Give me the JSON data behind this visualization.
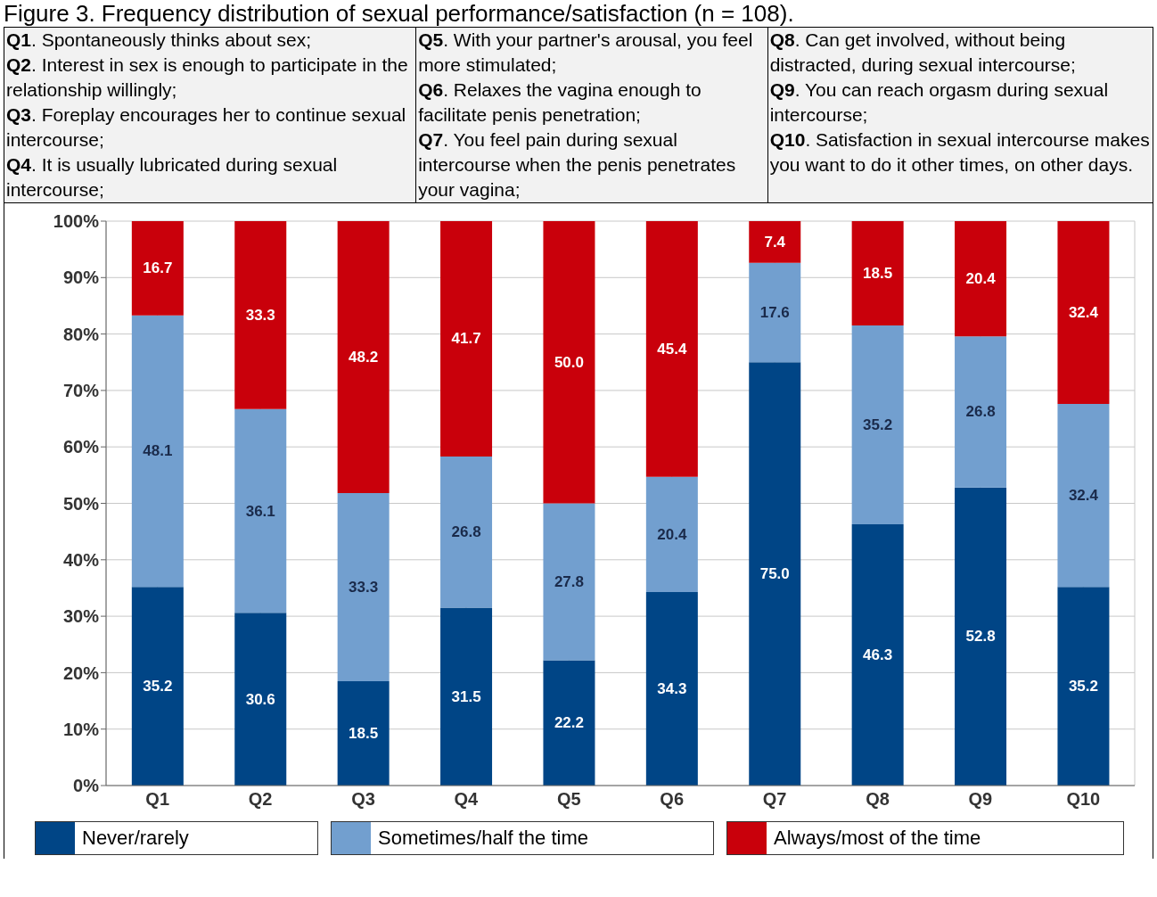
{
  "chart_data": {
    "type": "bar",
    "title": "Figure 3. Frequency distribution of sexual performance/satisfaction (n = 108).",
    "annotations": [
      "Q1. Spontaneously thinks about sex;",
      "Q2. Interest in sex is enough to participate in the relationship willingly;",
      "Q3. Foreplay encourages her to continue sexual intercourse;",
      "Q4. It is usually lubricated during sexual intercourse;",
      "Q5. With your partner's arousal, you feel more stimulated;",
      "Q6. Relaxes the vagina enough to facilitate penis penetration;",
      "Q7. You feel pain during sexual intercourse when the penis penetrates your vagina;",
      "Q8. Can get involved, without being distracted, during sexual intercourse;",
      "Q9. You can reach orgasm during sexual intercourse;",
      "Q10. Satisfaction in sexual intercourse makes you want to do it other times, on other days."
    ],
    "categories": [
      "Q1",
      "Q2",
      "Q3",
      "Q4",
      "Q5",
      "Q6",
      "Q7",
      "Q8",
      "Q9",
      "Q10"
    ],
    "stacked": true,
    "series": [
      {
        "name": "Never/rarely",
        "color": "#004586",
        "values": [
          35.2,
          30.6,
          18.5,
          31.5,
          22.2,
          34.3,
          75.0,
          46.3,
          52.8,
          35.2
        ],
        "value_labels": [
          "35.2",
          "30.6",
          "18.5",
          "31.5",
          "22.2",
          "34.3",
          "75.0",
          "46.3",
          "52.8",
          "35.2"
        ]
      },
      {
        "name": "Sometimes/half the time",
        "color": "#729fcf",
        "values": [
          48.1,
          36.1,
          33.3,
          26.8,
          27.8,
          20.4,
          17.6,
          35.2,
          26.8,
          32.4
        ],
        "value_labels": [
          "48.1",
          "36.1",
          "33.3",
          "26.8",
          "27.8",
          "20.4",
          "17.6",
          "35.2",
          "26.8",
          "32.4"
        ]
      },
      {
        "name": "Always/most of the time",
        "color": "#c9000b",
        "values": [
          16.7,
          33.3,
          48.2,
          41.7,
          50.0,
          45.4,
          7.4,
          18.5,
          20.4,
          32.4
        ],
        "value_labels": [
          "16.7",
          "33.3",
          "48.2",
          "41.7",
          "50.0",
          "45.4",
          "7.4",
          "18.5",
          "20.4",
          "32.4"
        ]
      }
    ],
    "ylim": [
      0,
      100
    ],
    "yticks": [
      {
        "value": 0,
        "label": "0%"
      },
      {
        "value": 10,
        "label": "10%"
      },
      {
        "value": 20,
        "label": "20%"
      },
      {
        "value": 30,
        "label": "30%"
      },
      {
        "value": 40,
        "label": "40%"
      },
      {
        "value": 50,
        "label": "50%"
      },
      {
        "value": 60,
        "label": "60%"
      },
      {
        "value": 70,
        "label": "70%"
      },
      {
        "value": 80,
        "label": "80%"
      },
      {
        "value": 90,
        "label": "90%"
      },
      {
        "value": 100,
        "label": "100%"
      }
    ],
    "grid": true,
    "legend": "bottom"
  }
}
